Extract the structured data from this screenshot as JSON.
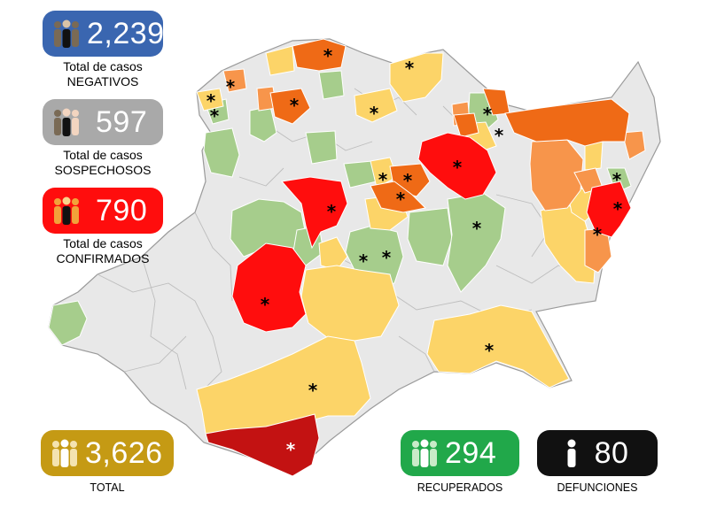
{
  "stats": {
    "negativos": {
      "value": "2,239",
      "label_line1": "Total de casos",
      "label_line2": "NEGATIVOS",
      "color": "#3a66b0",
      "icon": "people-icon"
    },
    "sospechosos": {
      "value": "597",
      "label_line1": "Total de casos",
      "label_line2": "SOSPECHOSOS",
      "color": "#a9a9a9",
      "icon": "people-icon"
    },
    "confirmados": {
      "value": "790",
      "label_line1": "Total de casos",
      "label_line2": "CONFIRMADOS",
      "color": "#ff0d0d",
      "icon": "people-icon"
    },
    "total": {
      "value": "3,626",
      "label": "TOTAL",
      "color": "#c59a14",
      "icon": "people-icon"
    },
    "recuperados": {
      "value": "294",
      "label": "RECUPERADOS",
      "color": "#21a84a",
      "icon": "people-icon"
    },
    "defunciones": {
      "value": "80",
      "label": "DEFUNCIONES",
      "color": "#111111",
      "icon": "person-icon"
    }
  },
  "map": {
    "marker_symbol": "*",
    "colors": {
      "none": "#e8e8e8",
      "green": "#a6cd8c",
      "yellow": "#fcd468",
      "light_orange": "#f7954b",
      "orange": "#ef6a16",
      "red": "#ff0d0d",
      "dark_red": "#c31212",
      "border": "#9a9a9a"
    }
  }
}
